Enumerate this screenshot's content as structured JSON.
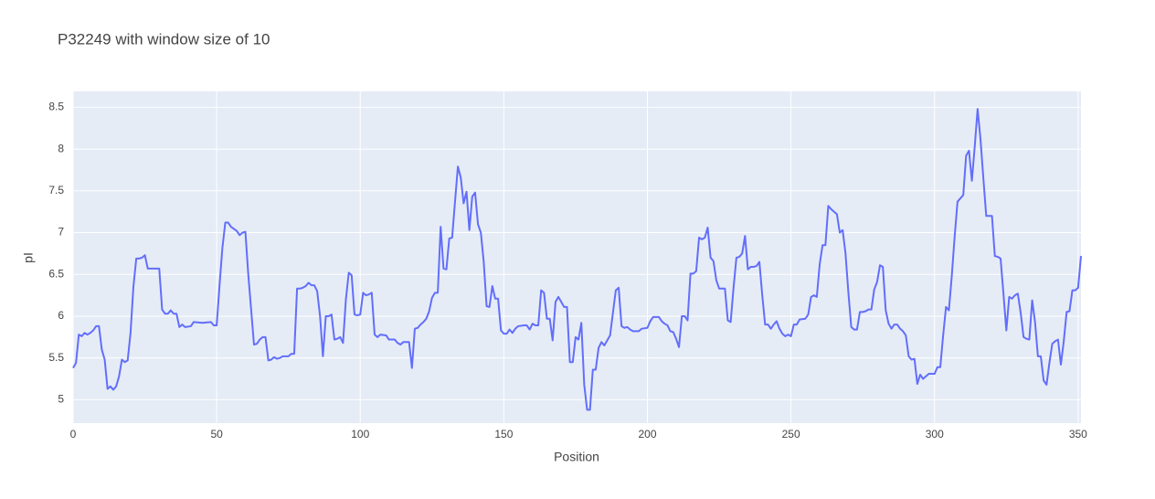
{
  "chart_data": {
    "type": "line",
    "title": "P32249 with window size of 10",
    "x_label": "Position",
    "y_label": "pI",
    "color": "#636efa",
    "grid": true,
    "xlim": [
      0,
      351
    ],
    "ylim": [
      4.72,
      8.69
    ],
    "xticks": [
      0,
      50,
      100,
      150,
      200,
      250,
      300,
      350
    ],
    "yticks": [
      5,
      5.5,
      6,
      6.5,
      7,
      7.5,
      8,
      8.5
    ],
    "x": [
      0,
      1,
      2,
      3,
      4,
      5,
      6,
      7,
      8,
      9,
      10,
      11,
      12,
      13,
      14,
      15,
      16,
      17,
      18,
      19,
      20,
      21,
      22,
      23,
      24,
      25,
      26,
      27,
      28,
      30,
      31,
      32,
      33,
      34,
      35,
      36,
      37,
      38,
      39,
      41,
      42,
      45,
      48,
      49,
      50,
      51,
      52,
      53,
      54,
      55,
      57,
      58,
      59,
      60,
      61,
      63,
      64,
      65,
      66,
      67,
      68,
      69,
      70,
      71,
      72,
      73,
      75,
      76,
      77,
      78,
      79,
      80,
      81,
      82,
      83,
      84,
      85,
      86,
      87,
      88,
      89,
      90,
      91,
      92,
      93,
      94,
      95,
      96,
      97,
      98,
      99,
      100,
      101,
      102,
      103,
      104,
      105,
      106,
      107,
      109,
      110,
      112,
      113,
      114,
      115,
      117,
      118,
      119,
      120,
      121,
      122,
      123,
      124,
      125,
      126,
      127,
      128,
      129,
      130,
      131,
      132,
      133,
      134,
      135,
      136,
      137,
      138,
      139,
      140,
      141,
      142,
      143,
      144,
      145,
      146,
      147,
      148,
      149,
      150,
      151,
      152,
      153,
      154,
      155,
      157,
      158,
      159,
      160,
      161,
      162,
      163,
      164,
      165,
      166,
      167,
      168,
      169,
      170,
      171,
      172,
      173,
      174,
      175,
      176,
      177,
      178,
      179,
      180,
      181,
      182,
      183,
      184,
      185,
      186,
      187,
      188,
      189,
      190,
      191,
      192,
      193,
      194,
      195,
      197,
      198,
      200,
      201,
      202,
      204,
      205,
      206,
      207,
      208,
      209,
      210,
      211,
      212,
      213,
      214,
      215,
      216,
      217,
      218,
      219,
      220,
      221,
      222,
      223,
      224,
      225,
      226,
      227,
      228,
      229,
      230,
      231,
      232,
      233,
      234,
      235,
      236,
      237,
      238,
      239,
      240,
      241,
      242,
      243,
      244,
      245,
      246,
      247,
      248,
      249,
      250,
      251,
      252,
      253,
      255,
      256,
      257,
      258,
      259,
      260,
      261,
      262,
      263,
      264,
      265,
      266,
      267,
      268,
      269,
      270,
      271,
      272,
      273,
      274,
      275,
      276,
      277,
      278,
      279,
      280,
      281,
      282,
      283,
      284,
      285,
      286,
      287,
      288,
      289,
      290,
      291,
      292,
      293,
      294,
      295,
      296,
      297,
      298,
      300,
      301,
      302,
      303,
      304,
      305,
      306,
      307,
      308,
      309,
      310,
      311,
      312,
      313,
      314,
      315,
      316,
      317,
      318,
      319,
      320,
      321,
      322,
      323,
      324,
      325,
      326,
      327,
      328,
      329,
      330,
      331,
      332,
      333,
      334,
      335,
      336,
      337,
      338,
      339,
      340,
      341,
      342,
      343,
      344,
      345,
      346,
      347,
      348,
      349,
      350,
      351
    ],
    "values": [
      5.38,
      5.44,
      5.78,
      5.76,
      5.8,
      5.78,
      5.8,
      5.83,
      5.88,
      5.88,
      5.6,
      5.48,
      5.13,
      5.16,
      5.12,
      5.16,
      5.28,
      5.48,
      5.45,
      5.47,
      5.8,
      6.35,
      6.69,
      6.69,
      6.7,
      6.73,
      6.57,
      6.57,
      6.57,
      6.57,
      6.08,
      6.03,
      6.03,
      6.07,
      6.03,
      6.03,
      5.87,
      5.9,
      5.87,
      5.88,
      5.93,
      5.92,
      5.93,
      5.89,
      5.89,
      6.37,
      6.82,
      7.12,
      7.12,
      7.07,
      7.02,
      6.97,
      7.0,
      7.01,
      6.5,
      5.66,
      5.67,
      5.72,
      5.75,
      5.75,
      5.47,
      5.48,
      5.51,
      5.49,
      5.5,
      5.52,
      5.52,
      5.55,
      5.55,
      6.33,
      6.33,
      6.34,
      6.36,
      6.4,
      6.37,
      6.37,
      6.3,
      6.0,
      5.52,
      6.0,
      6.0,
      6.02,
      5.72,
      5.73,
      5.75,
      5.68,
      6.2,
      6.52,
      6.49,
      6.02,
      6.01,
      6.02,
      6.28,
      6.25,
      6.26,
      6.28,
      5.78,
      5.75,
      5.78,
      5.77,
      5.72,
      5.72,
      5.68,
      5.66,
      5.69,
      5.69,
      5.38,
      5.85,
      5.86,
      5.9,
      5.93,
      5.97,
      6.06,
      6.22,
      6.28,
      6.28,
      7.07,
      6.57,
      6.56,
      6.93,
      6.94,
      7.37,
      7.79,
      7.66,
      7.35,
      7.49,
      7.03,
      7.43,
      7.48,
      7.1,
      7.0,
      6.65,
      6.12,
      6.11,
      6.36,
      6.21,
      6.21,
      5.83,
      5.79,
      5.79,
      5.84,
      5.8,
      5.85,
      5.88,
      5.89,
      5.89,
      5.84,
      5.91,
      5.89,
      5.89,
      6.31,
      6.28,
      5.97,
      5.97,
      5.71,
      6.17,
      6.23,
      6.17,
      6.11,
      6.11,
      5.45,
      5.45,
      5.75,
      5.72,
      5.92,
      5.18,
      4.88,
      4.88,
      5.36,
      5.36,
      5.62,
      5.69,
      5.65,
      5.71,
      5.77,
      6.04,
      6.31,
      6.34,
      5.88,
      5.86,
      5.87,
      5.84,
      5.82,
      5.82,
      5.85,
      5.86,
      5.94,
      5.99,
      5.99,
      5.94,
      5.91,
      5.89,
      5.82,
      5.81,
      5.73,
      5.63,
      6.0,
      6.0,
      5.95,
      6.51,
      6.51,
      6.54,
      6.94,
      6.92,
      6.94,
      7.06,
      6.7,
      6.66,
      6.43,
      6.33,
      6.33,
      6.33,
      5.95,
      5.93,
      6.34,
      6.7,
      6.71,
      6.75,
      6.96,
      6.56,
      6.59,
      6.59,
      6.6,
      6.65,
      6.25,
      5.9,
      5.9,
      5.85,
      5.9,
      5.94,
      5.85,
      5.79,
      5.76,
      5.78,
      5.76,
      5.9,
      5.9,
      5.96,
      5.97,
      6.02,
      6.23,
      6.25,
      6.23,
      6.62,
      6.85,
      6.85,
      7.32,
      7.28,
      7.25,
      7.22,
      7.0,
      7.03,
      6.75,
      6.28,
      5.87,
      5.84,
      5.84,
      6.05,
      6.05,
      6.06,
      6.08,
      6.08,
      6.32,
      6.41,
      6.61,
      6.59,
      6.07,
      5.91,
      5.85,
      5.9,
      5.9,
      5.85,
      5.82,
      5.77,
      5.52,
      5.48,
      5.49,
      5.19,
      5.3,
      5.25,
      5.28,
      5.31,
      5.31,
      5.39,
      5.39,
      5.77,
      6.11,
      6.07,
      6.48,
      6.95,
      7.37,
      7.41,
      7.45,
      7.92,
      7.98,
      7.62,
      8.03,
      8.48,
      8.12,
      7.65,
      7.2,
      7.2,
      7.2,
      6.72,
      6.71,
      6.69,
      6.27,
      5.83,
      6.23,
      6.21,
      6.25,
      6.27,
      6.04,
      5.75,
      5.73,
      5.72,
      6.19,
      5.93,
      5.52,
      5.52,
      5.23,
      5.18,
      5.44,
      5.67,
      5.7,
      5.72,
      5.42,
      5.7,
      6.05,
      6.06,
      6.31,
      6.31,
      6.34,
      6.72
    ]
  }
}
